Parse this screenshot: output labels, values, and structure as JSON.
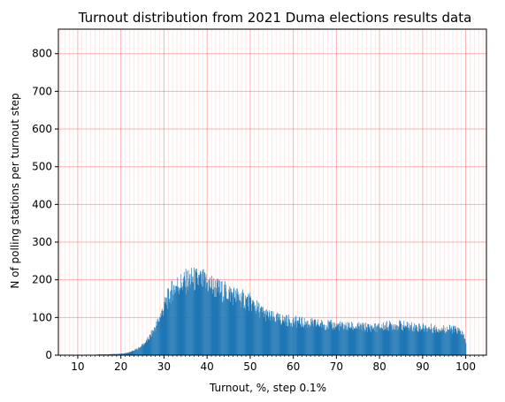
{
  "chart_data": {
    "type": "bar",
    "title": "Turnout distribution from 2021 Duma elections results data",
    "xlabel": "Turnout, %, step 0.1%",
    "ylabel": "N of polling stations per turnout step",
    "xlim": [
      5.5,
      104.8
    ],
    "ylim": [
      0,
      865
    ],
    "step": 0.1,
    "x_ticks": [
      10,
      20,
      30,
      40,
      50,
      60,
      70,
      80,
      90,
      100
    ],
    "y_ticks": [
      0,
      100,
      200,
      300,
      400,
      500,
      600,
      700,
      800
    ],
    "bar_color": "#1f77b4",
    "grid": {
      "on": true,
      "color": "#ff0000",
      "major_every": 10,
      "minor_every": 1
    },
    "x": [
      5,
      6,
      7,
      8,
      9,
      10,
      11,
      12,
      13,
      14,
      15,
      16,
      17,
      18,
      19,
      20,
      21,
      22,
      23,
      24,
      25,
      26,
      27,
      28,
      29,
      30,
      31,
      32,
      33,
      34,
      35,
      36,
      37,
      38,
      39,
      40,
      41,
      42,
      43,
      44,
      45,
      46,
      47,
      48,
      49,
      50,
      51,
      52,
      53,
      54,
      55,
      56,
      57,
      58,
      59,
      60,
      61,
      62,
      63,
      64,
      65,
      66,
      67,
      68,
      69,
      70,
      71,
      72,
      73,
      74,
      75,
      76,
      77,
      78,
      79,
      80,
      81,
      82,
      83,
      84,
      85,
      86,
      87,
      88,
      89,
      90,
      91,
      92,
      93,
      94,
      95,
      96,
      97,
      98,
      99,
      100,
      101
    ],
    "values": [
      1,
      1,
      1,
      1,
      1,
      1,
      1,
      1,
      1,
      1,
      2,
      2,
      2,
      3,
      3,
      4,
      5,
      8,
      12,
      18,
      27,
      38,
      55,
      75,
      100,
      130,
      155,
      175,
      185,
      190,
      195,
      200,
      200,
      198,
      195,
      190,
      185,
      178,
      172,
      168,
      165,
      160,
      155,
      150,
      145,
      140,
      130,
      120,
      112,
      105,
      100,
      97,
      95,
      93,
      91,
      90,
      88,
      86,
      85,
      84,
      83,
      82,
      81,
      80,
      79,
      78,
      77,
      76,
      76,
      75,
      75,
      74,
      74,
      73,
      73,
      74,
      76,
      78,
      79,
      80,
      78,
      77,
      76,
      75,
      74,
      73,
      72,
      71,
      70,
      70,
      69,
      69,
      68,
      66,
      60,
      35,
      0
    ]
  }
}
